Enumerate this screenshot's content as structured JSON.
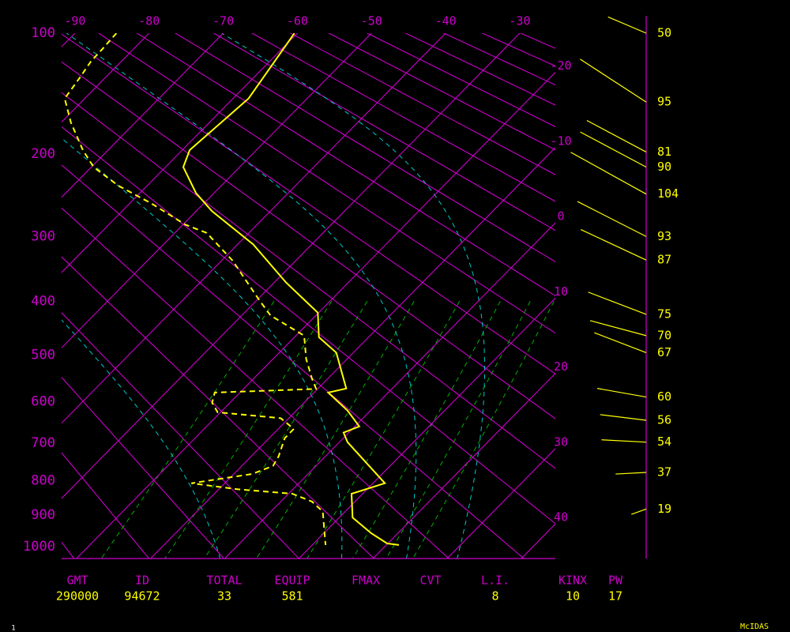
{
  "chart_data": {
    "type": "skewt",
    "ylim": [
      100,
      1040
    ],
    "yticks": [
      100,
      200,
      300,
      400,
      500,
      600,
      700,
      800,
      900,
      1000
    ],
    "xlim": [
      -91.8,
      -25.2
    ],
    "xticks": [
      -90,
      -80,
      -70,
      -60,
      -50,
      -40,
      -30,
      -20,
      -10,
      0,
      10,
      20,
      30,
      40
    ],
    "grid": true,
    "series": [
      {
        "color": "#ffff00",
        "dash": false,
        "pressure": [
          100,
          148,
          196,
          214,
          244,
          266,
          311,
          369,
          420,
          465,
          495,
          570,
          579,
          620,
          658,
          673,
          697,
          807,
          837,
          908,
          957,
          990,
          995
        ],
        "values": [
          -60.4,
          -57.9,
          -59.0,
          -57.6,
          -52.4,
          -47.9,
          -37.9,
          -28.4,
          -20.1,
          -16.7,
          -12.3,
          -6.2,
          -8.1,
          -3.1,
          0.6,
          -0.7,
          1.1,
          11.6,
          8.5,
          11.8,
          16.4,
          19.9,
          21.7
        ]
      },
      {
        "color": "#ffff00",
        "dash": true,
        "pressure": [
          100,
          110,
          119,
          132,
          148,
          169,
          196,
          214,
          235,
          256,
          284,
          295,
          335,
          398,
          425,
          462,
          508,
          549,
          571,
          579,
          602,
          624,
          638,
          664,
          687,
          734,
          759,
          781,
          807,
          824,
          837,
          860,
          890,
          995
        ],
        "values": [
          -84.4,
          -84.2,
          -84.1,
          -83.4,
          -82.7,
          -78.7,
          -73.4,
          -69.7,
          -63.9,
          -57.2,
          -49.6,
          -45.7,
          -38.5,
          -29.7,
          -26.1,
          -18.9,
          -15.5,
          -12.1,
          -10.2,
          -23.4,
          -22.4,
          -20.4,
          -11.1,
          -7.9,
          -7.9,
          -6.3,
          -5.8,
          -7.5,
          -14.5,
          -7.5,
          0.5,
          4.2,
          7.0,
          11.8
        ]
      }
    ],
    "winds": {
      "color": "#ffff00",
      "pressure": [
        100,
        151,
        198,
        214,
        245,
        300,
        334,
        423,
        462,
        495,
        589,
        643,
        697,
        777,
        882
      ],
      "values": [
        50,
        95,
        81,
        90,
        104,
        93,
        87,
        75,
        70,
        67,
        60,
        56,
        54,
        37,
        19
      ],
      "direction": [
        293,
        303,
        298,
        298,
        299,
        297,
        295,
        291,
        285,
        291,
        280,
        277,
        273,
        267,
        250
      ]
    }
  },
  "stats": [
    {
      "label": "GMT",
      "value": 290000
    },
    {
      "label": "ID",
      "value": 94672
    },
    {
      "label": "TOTAL",
      "value": 33
    },
    {
      "label": "EQUIP",
      "value": 581
    },
    {
      "label": "FMAX"
    },
    {
      "label": "CVT"
    },
    {
      "label": "L.I.",
      "value": 8
    },
    {
      "label": "KINX",
      "value": 10
    },
    {
      "label": "PW",
      "value": 17
    }
  ],
  "page_label": "1",
  "footer": "McIDAS"
}
